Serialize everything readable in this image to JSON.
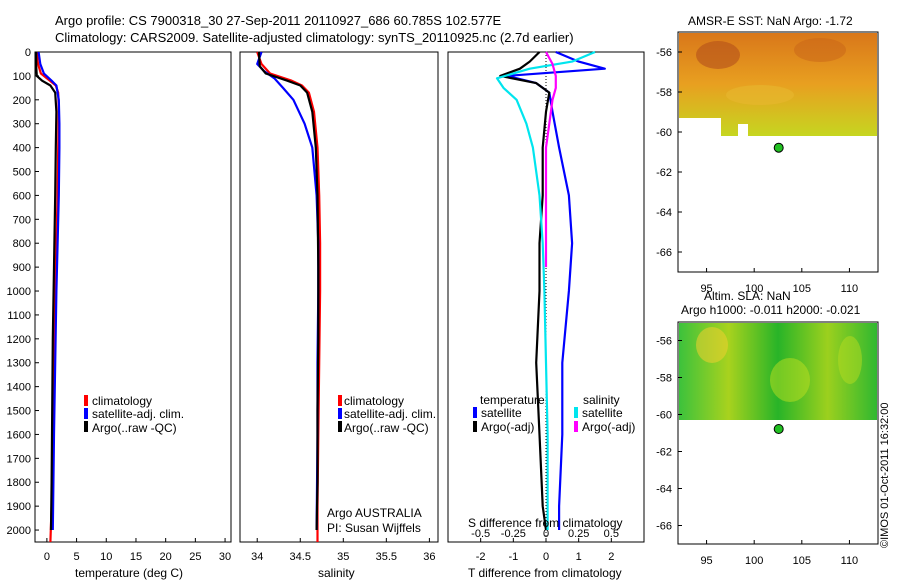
{
  "title_line1": "Argo profile: CS 7900318_30 27-Sep-2011 20110927_686 60.785S 102.577E",
  "title_line2": "Climatology: CARS2009. Satellite-adjusted climatology: synTS_20110925.nc (2.7d earlier)",
  "colors": {
    "climatology": "#ff0000",
    "satellite": "#0000ff",
    "argo": "#000000",
    "sat_s": "#00e5ee",
    "argo_s": "#ff00ff"
  },
  "chart_data": [
    {
      "type": "line",
      "panel": "temperature",
      "xlabel": "temperature (deg C)",
      "xlim": [
        -2,
        31
      ],
      "ylim": [
        2050,
        0
      ],
      "xticks": [
        "0",
        "5",
        "10",
        "15",
        "20",
        "25",
        "30"
      ],
      "yticks": [
        "0",
        "100",
        "200",
        "300",
        "400",
        "500",
        "600",
        "700",
        "800",
        "900",
        "1000",
        "1100",
        "1200",
        "1300",
        "1400",
        "1500",
        "1600",
        "1700",
        "1800",
        "1900",
        "2000"
      ],
      "legend": [
        "climatology",
        "satellite-adj. clim.",
        "Argo(..raw -QC)"
      ],
      "series": [
        {
          "name": "climatology",
          "color": "#ff0000",
          "x": [
            -1.7,
            -1.5,
            -1.0,
            0.5,
            1.5,
            1.9,
            2.0,
            1.9,
            1.8,
            1.6,
            1.4,
            1.2,
            1.0,
            0.8,
            0.6
          ],
          "y": [
            0,
            50,
            90,
            120,
            140,
            170,
            250,
            400,
            600,
            800,
            1000,
            1300,
            1600,
            1900,
            2050
          ]
        },
        {
          "name": "satellite-adj. clim.",
          "color": "#0000ff",
          "x": [
            -1.4,
            -1.1,
            -0.5,
            0.8,
            1.6,
            2.0,
            2.1,
            2.1,
            2.0,
            1.8,
            1.6,
            1.4,
            1.2,
            1.0
          ],
          "y": [
            0,
            50,
            90,
            120,
            140,
            200,
            300,
            400,
            600,
            800,
            1000,
            1300,
            1600,
            2000
          ]
        },
        {
          "name": "Argo(..raw -QC)",
          "color": "#000000",
          "x": [
            -1.8,
            -1.8,
            -1.7,
            -0.8,
            0.6,
            1.4,
            1.6,
            1.5,
            1.4,
            1.2,
            1.0,
            0.9,
            0.8,
            0.7
          ],
          "y": [
            0,
            60,
            100,
            120,
            140,
            170,
            250,
            400,
            600,
            900,
            1200,
            1500,
            1800,
            2000
          ]
        }
      ]
    },
    {
      "type": "line",
      "panel": "salinity",
      "xlabel": "salinity",
      "xlim": [
        33.8,
        36.1
      ],
      "ylim": [
        2050,
        0
      ],
      "xticks": [
        "34",
        "34.5",
        "35",
        "35.5",
        "36"
      ],
      "legend": [
        "climatology",
        "satellite-adj. clim.",
        "Argo(..raw -QC)"
      ],
      "annotation": [
        "Argo AUSTRALIA",
        "PI: Susan Wijffels"
      ],
      "series": [
        {
          "name": "climatology",
          "color": "#ff0000",
          "x": [
            34.0,
            34.05,
            34.15,
            34.4,
            34.52,
            34.6,
            34.66,
            34.7,
            34.72,
            34.73,
            34.73,
            34.72,
            34.71,
            34.7,
            34.7
          ],
          "y": [
            0,
            50,
            90,
            120,
            140,
            170,
            250,
            400,
            600,
            800,
            1000,
            1300,
            1600,
            1900,
            2050
          ]
        },
        {
          "name": "satellite-adj. clim.",
          "color": "#0000ff",
          "x": [
            34.05,
            34.0,
            34.08,
            34.2,
            34.3,
            34.42,
            34.55,
            34.64,
            34.69,
            34.71,
            34.71,
            34.7,
            34.7,
            34.69
          ],
          "y": [
            0,
            50,
            80,
            110,
            150,
            200,
            300,
            400,
            600,
            800,
            1000,
            1300,
            1600,
            2000
          ]
        },
        {
          "name": "Argo(..raw -QC)",
          "color": "#000000",
          "x": [
            34.02,
            34.03,
            34.1,
            34.35,
            34.5,
            34.58,
            34.64,
            34.68,
            34.7,
            34.71,
            34.71,
            34.7,
            34.7,
            34.69
          ],
          "y": [
            0,
            60,
            90,
            120,
            140,
            170,
            250,
            400,
            600,
            900,
            1200,
            1500,
            1800,
            2000
          ]
        }
      ]
    },
    {
      "type": "line",
      "panel": "difference",
      "xlabel": "T difference from climatology",
      "xlabel_top": "S difference from climatology",
      "xlim": [
        -3.0,
        3.0
      ],
      "ylim": [
        2050,
        0
      ],
      "xticks": [
        "-2",
        "-1",
        "0",
        "1",
        "2"
      ],
      "sticks": [
        "-0.5",
        "-0.25",
        "0",
        "0.25",
        "0.5"
      ],
      "legend": {
        "temperature": [
          "satellite",
          "Argo(-adj)"
        ],
        "salinity": [
          "satellite",
          "Argo(-adj)"
        ],
        "temperature_header": "temperature",
        "salinity_header": "salinity"
      },
      "series": [
        {
          "name": "satellite",
          "group": "temperature",
          "color": "#0000ff",
          "x": [
            0.3,
            1.0,
            1.8,
            -1.2,
            -0.3,
            0.1,
            0.2,
            0.4,
            0.7,
            0.8,
            0.7,
            0.5,
            0.5,
            0.4,
            0.4
          ],
          "y": [
            0,
            40,
            70,
            100,
            130,
            170,
            250,
            400,
            600,
            800,
            1000,
            1300,
            1600,
            1900,
            2000
          ]
        },
        {
          "name": "Argo(-adj)",
          "group": "temperature",
          "color": "#000000",
          "x": [
            -0.2,
            -0.5,
            -0.8,
            -1.4,
            -0.3,
            0.1,
            0.0,
            -0.1,
            -0.1,
            -0.2,
            -0.2,
            -0.3,
            -0.2,
            -0.1,
            0.0
          ],
          "y": [
            0,
            40,
            70,
            100,
            130,
            170,
            250,
            400,
            600,
            800,
            1000,
            1300,
            1600,
            1900,
            2000
          ]
        },
        {
          "name": "satellite",
          "group": "salinity",
          "color": "#00e5ee",
          "x": [
            1.5,
            0.8,
            -0.5,
            -1.5,
            -1.3,
            -0.9,
            -0.6,
            -0.4,
            -0.2,
            -0.1,
            -0.05,
            0.0,
            0.05,
            0.05,
            0.05
          ],
          "y": [
            0,
            40,
            70,
            110,
            150,
            200,
            300,
            400,
            600,
            800,
            1000,
            1300,
            1600,
            1900,
            2000
          ]
        },
        {
          "name": "Argo(-adj)",
          "group": "salinity",
          "color": "#ff00ff",
          "x": [
            0.0,
            0.2,
            0.3,
            0.3,
            0.2,
            0.1,
            0.0,
            0.0,
            0.0,
            0.0
          ],
          "y": [
            0,
            50,
            100,
            150,
            200,
            300,
            400,
            600,
            800,
            900
          ]
        }
      ]
    },
    {
      "type": "heatmap",
      "panel": "sst_map",
      "title": "AMSR-E SST: NaN Argo: -1.72",
      "xticks": [
        "95",
        "100",
        "105",
        "110"
      ],
      "yticks": [
        "-56",
        "-58",
        "-60",
        "-62",
        "-64",
        "-66"
      ],
      "xlim": [
        92,
        113
      ],
      "ylim": [
        -67,
        -55
      ],
      "float_position": {
        "lon": 102.577,
        "lat": -60.785
      }
    },
    {
      "type": "heatmap",
      "panel": "sla_map",
      "title_line1": "Altim. SLA: NaN",
      "title_line2": "Argo h1000: -0.011 h2000: -0.021",
      "xticks": [
        "95",
        "100",
        "105",
        "110"
      ],
      "yticks": [
        "-56",
        "-58",
        "-60",
        "-62",
        "-64",
        "-66"
      ],
      "xlim": [
        92,
        113
      ],
      "ylim": [
        -67,
        -55
      ],
      "float_position": {
        "lon": 102.577,
        "lat": -60.785
      }
    }
  ],
  "credit": "©IMOS 01-Oct-2011 16:32:00"
}
